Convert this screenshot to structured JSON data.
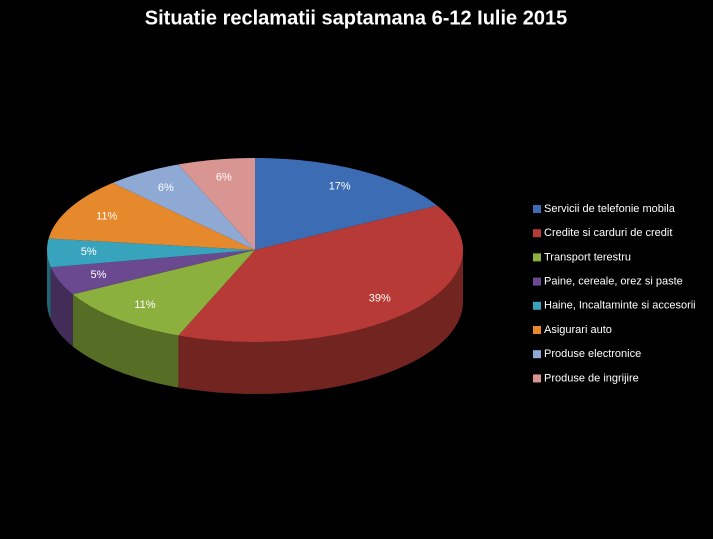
{
  "chart_data": {
    "type": "pie",
    "title": "Situatie reclamatii saptamana 6-12  Iulie 2015",
    "categories": [
      "Servicii de telefonie mobila",
      "Credite si carduri de credit",
      "Transport terestru",
      "Paine, cereale, orez si paste",
      "Haine, Incaltaminte  si accesorii",
      "Asigurari auto",
      "Produse electronice",
      "Produse de ingrijire"
    ],
    "values": [
      17,
      39,
      11,
      5,
      5,
      11,
      6,
      6
    ],
    "value_labels": [
      "17%",
      "39%",
      "11%",
      "5%",
      "5%",
      "11%",
      "6%",
      "6%"
    ],
    "colors": [
      "#3c6cb4",
      "#b83a36",
      "#8bb03e",
      "#6a4990",
      "#37a3bd",
      "#e6892c",
      "#8fa9d5",
      "#d89592"
    ],
    "legend": "right"
  }
}
